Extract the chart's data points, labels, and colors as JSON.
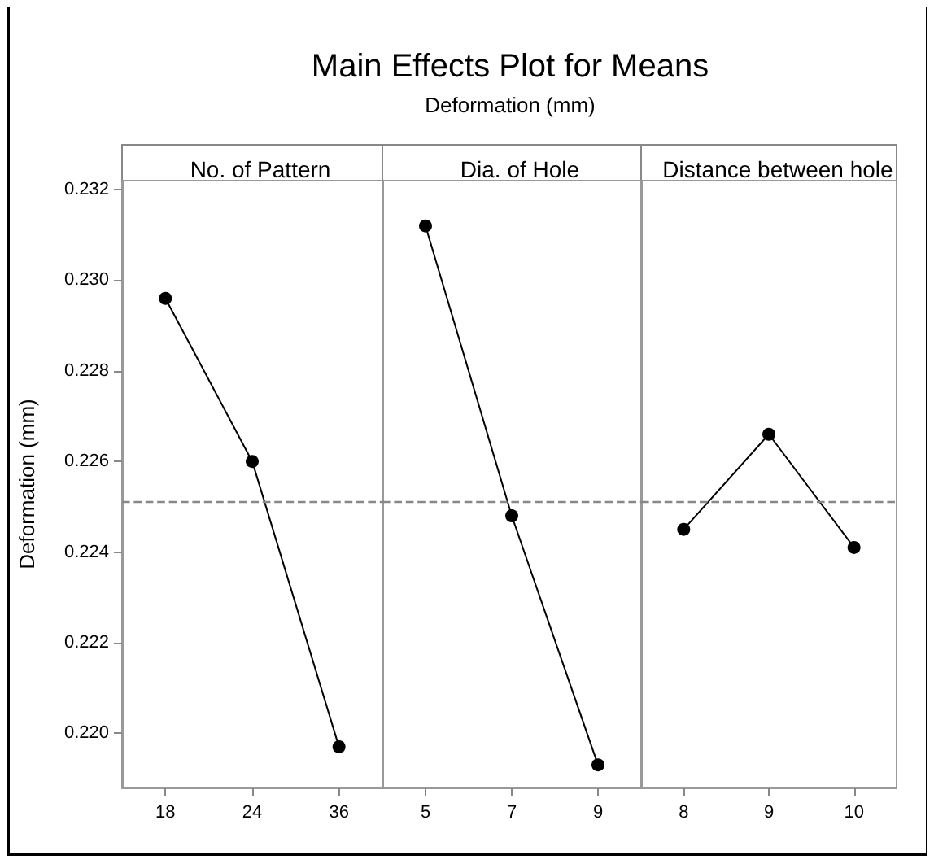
{
  "chart_data": [
    {
      "type": "line",
      "title": "No. of Pattern",
      "annotations": [
        "Main Effects Plot for Means",
        "Deformation (mm)"
      ],
      "ylabel": "Deformation (mm)",
      "categories": [
        "18",
        "24",
        "36"
      ],
      "series": [
        {
          "color": "#000000",
          "values": [
            0.2296,
            0.226,
            0.2197
          ]
        }
      ],
      "ylim": [
        0.2188,
        0.2322
      ],
      "yticks": [
        {
          "value": 0.22,
          "label": "0.220"
        },
        {
          "value": 0.222,
          "label": "0.222"
        },
        {
          "value": 0.224,
          "label": "0.224"
        },
        {
          "value": 0.226,
          "label": "0.226"
        },
        {
          "value": 0.228,
          "label": "0.228"
        },
        {
          "value": 0.23,
          "label": "0.230"
        },
        {
          "value": 0.232,
          "label": "0.232"
        }
      ],
      "ref_lines": [
        {
          "axis": "y",
          "value": 0.2251,
          "color": "#888888",
          "line_style": "dashed"
        }
      ],
      "marker": "circle",
      "grid": false
    },
    {
      "type": "line",
      "title": "Dia. of Hole",
      "categories": [
        "5",
        "7",
        "9"
      ],
      "series": [
        {
          "color": "#000000",
          "values": [
            0.2312,
            0.2248,
            0.2193
          ]
        }
      ],
      "ylim": [
        0.2188,
        0.2322
      ],
      "tick_labels": "x",
      "ref_lines": [
        {
          "axis": "y",
          "value": 0.2251,
          "color": "#888888",
          "line_style": "dashed"
        }
      ],
      "marker": "circle",
      "grid": false
    },
    {
      "type": "line",
      "title": "Distance between hole",
      "categories": [
        "8",
        "9",
        "10"
      ],
      "series": [
        {
          "color": "#000000",
          "values": [
            0.2245,
            0.2266,
            0.2241
          ]
        }
      ],
      "ylim": [
        0.2188,
        0.2322
      ],
      "tick_labels": "x",
      "ref_lines": [
        {
          "axis": "y",
          "value": 0.2251,
          "color": "#888888",
          "line_style": "dashed"
        }
      ],
      "marker": "circle",
      "grid": false
    }
  ]
}
